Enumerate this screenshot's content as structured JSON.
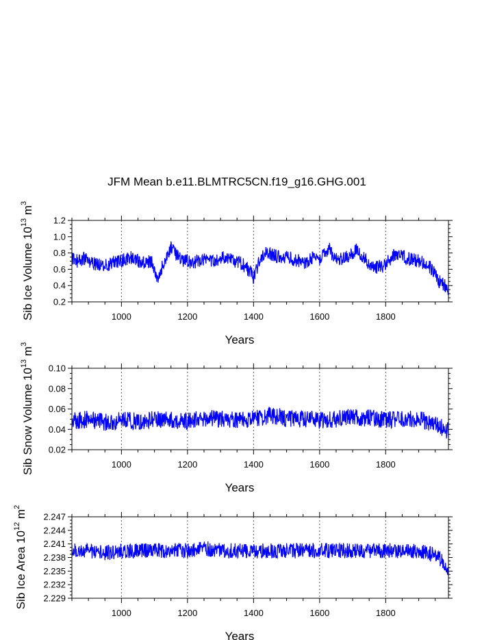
{
  "title": "JFM Mean b.e11.BLMTRC5CN.f19_g16.GHG.001",
  "chart_data": [
    {
      "type": "line",
      "xlabel": "Years",
      "ylabel": {
        "main": "Sib Ice Volume 10",
        "exp": "13",
        "unit": " m",
        "unit_exp": "3"
      },
      "xlim": [
        850,
        1990
      ],
      "ylim": [
        0.2,
        1.2
      ],
      "xticks": [
        1000,
        1200,
        1400,
        1600,
        1800
      ],
      "xtick_labels": [
        "1000",
        "1200",
        "1400",
        "1600",
        "1800"
      ],
      "yticks": [
        0.2,
        0.4,
        0.6,
        0.8,
        1.0,
        1.2
      ],
      "ytick_labels": [
        "0.2",
        "0.4",
        "0.6",
        "0.8",
        "1.0",
        "1.2"
      ],
      "grid": "vertical-dotted",
      "series": [
        {
          "color": "#0000ff",
          "x": [
            850,
            870,
            890,
            910,
            930,
            950,
            970,
            990,
            1010,
            1030,
            1050,
            1070,
            1090,
            1100,
            1110,
            1120,
            1140,
            1150,
            1160,
            1180,
            1200,
            1220,
            1240,
            1260,
            1280,
            1300,
            1320,
            1340,
            1360,
            1380,
            1395,
            1400,
            1420,
            1440,
            1460,
            1480,
            1500,
            1520,
            1540,
            1560,
            1580,
            1600,
            1620,
            1630,
            1640,
            1660,
            1680,
            1700,
            1715,
            1730,
            1750,
            1770,
            1790,
            1800,
            1820,
            1840,
            1860,
            1880,
            1900,
            1920,
            1940,
            1950,
            1960,
            1970,
            1980,
            1990
          ],
          "values": [
            0.72,
            0.7,
            0.74,
            0.68,
            0.66,
            0.64,
            0.68,
            0.7,
            0.72,
            0.74,
            0.7,
            0.68,
            0.7,
            0.6,
            0.45,
            0.6,
            0.78,
            0.88,
            0.8,
            0.72,
            0.7,
            0.68,
            0.72,
            0.74,
            0.7,
            0.72,
            0.76,
            0.7,
            0.68,
            0.62,
            0.55,
            0.5,
            0.72,
            0.8,
            0.78,
            0.74,
            0.76,
            0.72,
            0.7,
            0.68,
            0.74,
            0.72,
            0.8,
            0.88,
            0.76,
            0.72,
            0.74,
            0.8,
            0.86,
            0.74,
            0.68,
            0.62,
            0.64,
            0.66,
            0.76,
            0.8,
            0.74,
            0.72,
            0.7,
            0.68,
            0.6,
            0.56,
            0.46,
            0.42,
            0.4,
            0.36
          ]
        }
      ]
    },
    {
      "type": "line",
      "xlabel": "Years",
      "ylabel": {
        "main": "Sib Snow Volume 10",
        "exp": "13",
        "unit": " m",
        "unit_exp": "3"
      },
      "xlim": [
        850,
        1990
      ],
      "ylim": [
        0.02,
        0.1
      ],
      "xticks": [
        1000,
        1200,
        1400,
        1600,
        1800
      ],
      "xtick_labels": [
        "1000",
        "1200",
        "1400",
        "1600",
        "1800"
      ],
      "yticks": [
        0.02,
        0.04,
        0.06,
        0.08,
        0.1
      ],
      "ytick_labels": [
        "0.02",
        "0.04",
        "0.06",
        "0.08",
        "0.10"
      ],
      "grid": "vertical-dotted",
      "series": [
        {
          "color": "#0000ff",
          "x": [
            850,
            900,
            950,
            1000,
            1050,
            1100,
            1150,
            1200,
            1250,
            1300,
            1350,
            1400,
            1450,
            1500,
            1550,
            1600,
            1650,
            1700,
            1750,
            1800,
            1850,
            1900,
            1950,
            1990
          ],
          "values": [
            0.048,
            0.05,
            0.047,
            0.049,
            0.048,
            0.05,
            0.049,
            0.048,
            0.051,
            0.05,
            0.049,
            0.05,
            0.054,
            0.051,
            0.05,
            0.049,
            0.05,
            0.052,
            0.051,
            0.049,
            0.05,
            0.05,
            0.045,
            0.038
          ]
        }
      ]
    },
    {
      "type": "line",
      "xlabel": "Years",
      "ylabel": {
        "main": "Sib Ice Area 10",
        "exp": "12",
        "unit": " m",
        "unit_exp": "2"
      },
      "xlim": [
        850,
        1990
      ],
      "ylim": [
        2.229,
        2.247
      ],
      "xticks": [
        1000,
        1200,
        1400,
        1600,
        1800
      ],
      "xtick_labels": [
        "1000",
        "1200",
        "1400",
        "1600",
        "1800"
      ],
      "yticks": [
        2.229,
        2.232,
        2.235,
        2.238,
        2.241,
        2.244,
        2.247
      ],
      "ytick_labels": [
        "2.229",
        "2.232",
        "2.235",
        "2.238",
        "2.241",
        "2.244",
        "2.247"
      ],
      "grid": "vertical-dotted",
      "series": [
        {
          "color": "#0000ff",
          "x": [
            850,
            900,
            950,
            1000,
            1050,
            1100,
            1150,
            1200,
            1250,
            1300,
            1350,
            1400,
            1450,
            1500,
            1550,
            1600,
            1650,
            1700,
            1750,
            1800,
            1850,
            1900,
            1950,
            1970,
            1990
          ],
          "values": [
            2.2395,
            2.2395,
            2.239,
            2.2395,
            2.2395,
            2.2395,
            2.2395,
            2.2395,
            2.24,
            2.2395,
            2.2395,
            2.2395,
            2.2395,
            2.2395,
            2.2395,
            2.2395,
            2.2395,
            2.2395,
            2.2395,
            2.2395,
            2.2395,
            2.2395,
            2.2385,
            2.2375,
            2.2345
          ]
        }
      ]
    }
  ]
}
